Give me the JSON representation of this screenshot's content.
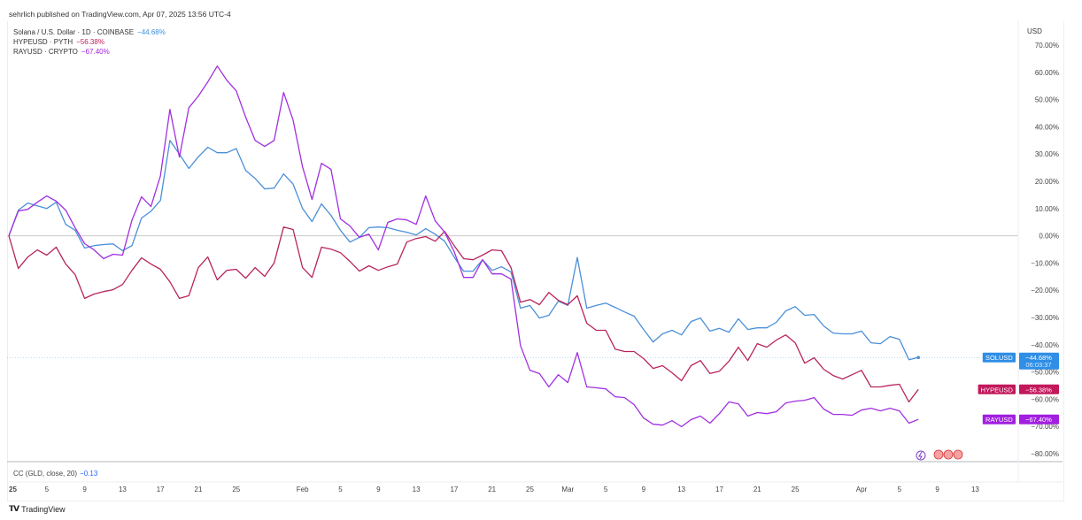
{
  "header": {
    "published": "sehrlich published on TradingView.com, Apr 07, 2025 13:56 UTC-4"
  },
  "legend": [
    {
      "label": "Solana / U.S. Dollar · 1D · COINBASE",
      "value": "−44.68%",
      "color": "#3b8fd9"
    },
    {
      "label": "HYPEUSD · PYTH",
      "value": "−56.38%",
      "color": "#c2185b"
    },
    {
      "label": "RAYUSD · CRYPTO",
      "value": "−67.40%",
      "color": "#a21fe0"
    }
  ],
  "price_axis": {
    "currency": "USD"
  },
  "indicator": {
    "label": "CC (GLD, close, 20)",
    "value": "−0.13"
  },
  "branding": {
    "logo_text": "TradingView"
  },
  "chart_data": {
    "type": "line",
    "title": "",
    "xlabel": "",
    "ylabel": "",
    "x_start": "2025-01-01",
    "x_end": "2025-04-07",
    "x_interval": "1D",
    "ylim": [
      -80,
      70
    ],
    "y_unit": "%",
    "y_ticks": [
      "70.00%",
      "60.00%",
      "50.00%",
      "40.00%",
      "30.00%",
      "20.00%",
      "10.00%",
      "0.00%",
      "−10.00%",
      "−20.00%",
      "−30.00%",
      "−40.00%",
      "−50.00%",
      "−60.00%",
      "−70.00%",
      "−80.00%"
    ],
    "y_tick_values": [
      70,
      60,
      50,
      40,
      30,
      20,
      10,
      0,
      -10,
      -20,
      -30,
      -40,
      -50,
      -60,
      -70,
      -80
    ],
    "x_ticks": [
      {
        "label": "25",
        "date": "2025-01-01"
      },
      {
        "label": "5",
        "date": "2025-01-05"
      },
      {
        "label": "9",
        "date": "2025-01-09"
      },
      {
        "label": "13",
        "date": "2025-01-13"
      },
      {
        "label": "17",
        "date": "2025-01-17"
      },
      {
        "label": "21",
        "date": "2025-01-21"
      },
      {
        "label": "25",
        "date": "2025-01-25"
      },
      {
        "label": "Feb",
        "date": "2025-02-01"
      },
      {
        "label": "5",
        "date": "2025-02-05"
      },
      {
        "label": "9",
        "date": "2025-02-09"
      },
      {
        "label": "13",
        "date": "2025-02-13"
      },
      {
        "label": "17",
        "date": "2025-02-17"
      },
      {
        "label": "21",
        "date": "2025-02-21"
      },
      {
        "label": "25",
        "date": "2025-02-25"
      },
      {
        "label": "Mar",
        "date": "2025-03-01"
      },
      {
        "label": "5",
        "date": "2025-03-05"
      },
      {
        "label": "9",
        "date": "2025-03-09"
      },
      {
        "label": "13",
        "date": "2025-03-13"
      },
      {
        "label": "17",
        "date": "2025-03-17"
      },
      {
        "label": "21",
        "date": "2025-03-21"
      },
      {
        "label": "25",
        "date": "2025-03-25"
      },
      {
        "label": "Apr",
        "date": "2025-04-01"
      },
      {
        "label": "5",
        "date": "2025-04-05"
      },
      {
        "label": "9",
        "date": "2025-04-09"
      },
      {
        "label": "13",
        "date": "2025-04-13"
      }
    ],
    "grid": false,
    "zero_line": true,
    "series": [
      {
        "name": "SOLUSD",
        "color": "#4a8fd8",
        "label_bg": "#2f8ee5",
        "last_value": "−44.68%",
        "countdown": "06:03:37",
        "values": [
          0,
          9.4,
          12,
          11,
          10,
          12.3,
          4.2,
          2,
          -4.5,
          -3.6,
          -3.2,
          -3,
          -5.5,
          -3.6,
          6.5,
          9,
          13,
          35,
          30,
          24.7,
          29,
          32.5,
          30.5,
          30.5,
          32,
          24,
          21,
          17.2,
          17.5,
          22.7,
          19,
          10,
          5.2,
          11.7,
          7.5,
          2,
          -2.3,
          -0.6,
          3,
          3.2,
          3,
          2,
          1.3,
          0.3,
          2.6,
          0.6,
          -2,
          -7.8,
          -13,
          -13,
          -8.8,
          -12.7,
          -11.4,
          -13.3,
          -26.6,
          -25.6,
          -30.2,
          -29.2,
          -24,
          -25.6,
          -8,
          -26.6,
          -25.6,
          -24.7,
          -26.3,
          -28,
          -29.5,
          -34.4,
          -39,
          -36,
          -34.7,
          -36.4,
          -31.5,
          -30.2,
          -35,
          -34,
          -35.4,
          -30.5,
          -34.4,
          -33.8,
          -33.8,
          -31.8,
          -27.6,
          -26,
          -29.2,
          -28.9,
          -33.1,
          -35.7,
          -36,
          -36,
          -35,
          -39.3,
          -39.6,
          -37,
          -38,
          -45.5,
          -44.68
        ]
      },
      {
        "name": "HYPEUSD",
        "color": "#b8245e",
        "label_bg": "#c2185b",
        "last_value": "−56.38%",
        "values": [
          0,
          -12,
          -7.8,
          -5.2,
          -7.1,
          -4.2,
          -10.4,
          -14.3,
          -23,
          -21.4,
          -20.5,
          -19.8,
          -17.9,
          -12.7,
          -8.1,
          -10.4,
          -12.3,
          -16.9,
          -23,
          -22,
          -11.7,
          -7.8,
          -16.2,
          -12.7,
          -12.3,
          -15.6,
          -11.7,
          -14.9,
          -10,
          3.2,
          2.3,
          -11.7,
          -15.3,
          -4.2,
          -4.9,
          -6.2,
          -9.4,
          -13,
          -11,
          -12.7,
          -11.4,
          -10.4,
          -2.3,
          -1,
          -0.3,
          -2,
          1.6,
          -3.6,
          -8.4,
          -8.8,
          -7.1,
          -5.2,
          -5.5,
          -11.7,
          -24.4,
          -23.4,
          -25.3,
          -20.8,
          -23.7,
          -25.3,
          -22,
          -32.1,
          -34.7,
          -34.7,
          -41.6,
          -42.5,
          -42.5,
          -45.1,
          -48.7,
          -47.7,
          -50.3,
          -53.2,
          -47.7,
          -45.8,
          -50.6,
          -49.7,
          -46.1,
          -40.9,
          -45.8,
          -39.6,
          -40.9,
          -38.3,
          -36.4,
          -39.3,
          -46.8,
          -44.8,
          -49,
          -51.3,
          -52.6,
          -51,
          -49.4,
          -55.5,
          -55.5,
          -54.9,
          -54.5,
          -61,
          -56.38
        ]
      },
      {
        "name": "RAYUSD",
        "color": "#a030e0",
        "label_bg": "#a21fe0",
        "last_value": "−67.40%",
        "values": [
          0,
          9.1,
          9.7,
          12.3,
          14.6,
          12.7,
          9.4,
          2.9,
          -2.9,
          -5.2,
          -8.4,
          -6.8,
          -7.1,
          5.8,
          14.3,
          10.7,
          22,
          46.4,
          28.9,
          47,
          51.3,
          56.5,
          62.3,
          57.1,
          53.2,
          43.5,
          35,
          32.8,
          35,
          52.6,
          42.5,
          25.3,
          13.3,
          26.6,
          24.4,
          6.2,
          3.6,
          -0.6,
          0.6,
          -5.2,
          4.9,
          6.2,
          5.8,
          4.2,
          14.6,
          5.5,
          1.3,
          -5.8,
          -15.3,
          -15.3,
          -8.8,
          -14,
          -14,
          -15.9,
          -40.3,
          -49.4,
          -50.6,
          -55.5,
          -51,
          -53.9,
          -42.9,
          -55.5,
          -55.8,
          -56.2,
          -59.1,
          -59.4,
          -62,
          -66.9,
          -69.2,
          -69.5,
          -67.9,
          -70.1,
          -67.5,
          -66.2,
          -68.8,
          -65.3,
          -61,
          -61.7,
          -66.2,
          -64.9,
          -65.3,
          -64.6,
          -61.4,
          -60.7,
          -60.4,
          -59.4,
          -63.6,
          -65.6,
          -65.6,
          -65.9,
          -64,
          -63.3,
          -64.3,
          -63.3,
          -64.3,
          -68.8,
          -67.4
        ]
      }
    ]
  }
}
